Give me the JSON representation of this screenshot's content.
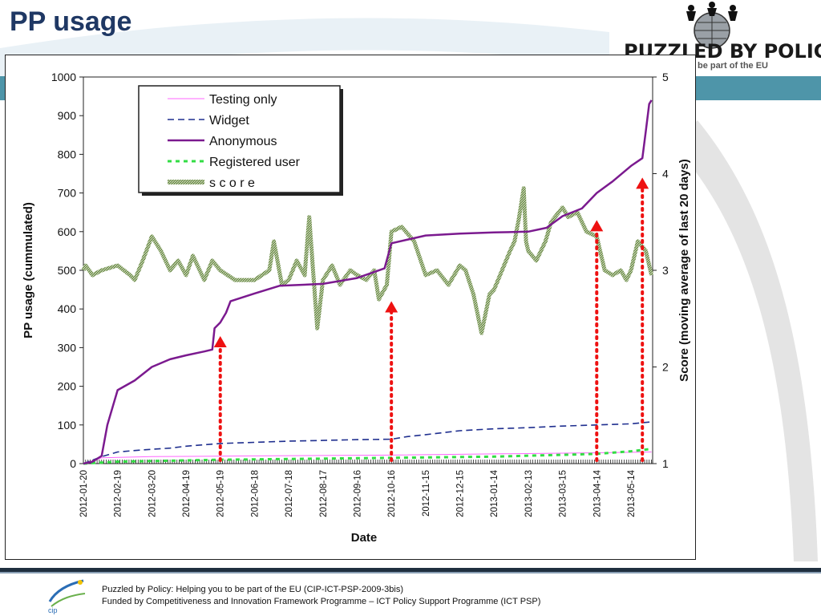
{
  "slide": {
    "title": "PP usage",
    "logo_text": "PUZZLED BY POLICY?",
    "logo_subtext": "be part of the EU",
    "footer_line1": "Puzzled by Policy: Helping you to be part of the EU (CIP-ICT-PSP-2009-3bis)",
    "footer_line2": "Funded by Competitiveness and Innovation Framework Programme – ICT Policy Support Programme (ICT PSP)",
    "colors": {
      "title": "#1f3864",
      "accent": "#4fa3b8"
    },
    "icons": [
      "puzzled-by-policy-logo",
      "cip-logo"
    ]
  },
  "chart_data": {
    "type": "line",
    "xlabel": "Date",
    "ylabel": "PP usage (cummulated)",
    "y2label": "Score (moving average of last 20 days)",
    "x_ticks": [
      "2012-01-20",
      "2012-02-19",
      "2012-03-20",
      "2012-04-19",
      "2012-05-19",
      "2012-06-18",
      "2012-07-18",
      "2012-08-17",
      "2012-09-16",
      "2012-10-16",
      "2012-11-15",
      "2012-12-15",
      "2013-01-14",
      "2013-02-13",
      "2013-03-15",
      "2013-04-14",
      "2013-05-14"
    ],
    "xlim": [
      "2012-01-20",
      "2013-06-02"
    ],
    "ylim": [
      0,
      1000
    ],
    "y_ticks": [
      0,
      100,
      200,
      300,
      400,
      500,
      600,
      700,
      800,
      900,
      1000
    ],
    "y2lim": [
      1,
      5
    ],
    "y2_ticks": [
      1,
      2,
      3,
      4,
      5
    ],
    "legend_position": "top-left",
    "series": [
      {
        "name": "Testing only",
        "axis": "left",
        "color": "#ff66ff",
        "style": "solid-thin",
        "points": [
          [
            "2012-01-20",
            0
          ],
          [
            "2012-02-05",
            15
          ],
          [
            "2012-03-20",
            18
          ],
          [
            "2012-06-18",
            20
          ],
          [
            "2012-10-16",
            22
          ],
          [
            "2013-01-14",
            25
          ],
          [
            "2013-04-14",
            28
          ],
          [
            "2013-06-01",
            30
          ]
        ]
      },
      {
        "name": "Widget",
        "axis": "left",
        "color": "#1f2f8f",
        "style": "dashed",
        "points": [
          [
            "2012-01-20",
            0
          ],
          [
            "2012-02-05",
            18
          ],
          [
            "2012-02-19",
            30
          ],
          [
            "2012-03-10",
            35
          ],
          [
            "2012-04-05",
            40
          ],
          [
            "2012-04-19",
            45
          ],
          [
            "2012-05-19",
            52
          ],
          [
            "2012-06-18",
            55
          ],
          [
            "2012-07-18",
            58
          ],
          [
            "2012-08-17",
            60
          ],
          [
            "2012-09-16",
            62
          ],
          [
            "2012-10-16",
            63
          ],
          [
            "2012-10-30",
            70
          ],
          [
            "2012-11-15",
            75
          ],
          [
            "2012-12-15",
            85
          ],
          [
            "2013-01-14",
            90
          ],
          [
            "2013-02-13",
            93
          ],
          [
            "2013-03-15",
            97
          ],
          [
            "2013-04-14",
            100
          ],
          [
            "2013-05-14",
            103
          ],
          [
            "2013-06-01",
            108
          ]
        ]
      },
      {
        "name": "Anonymous",
        "axis": "left",
        "color": "#7b1a8f",
        "style": "solid-thick",
        "points": [
          [
            "2012-01-20",
            0
          ],
          [
            "2012-01-28",
            5
          ],
          [
            "2012-02-05",
            20
          ],
          [
            "2012-02-10",
            100
          ],
          [
            "2012-02-15",
            150
          ],
          [
            "2012-02-19",
            190
          ],
          [
            "2012-03-05",
            215
          ],
          [
            "2012-03-20",
            250
          ],
          [
            "2012-04-05",
            270
          ],
          [
            "2012-04-19",
            280
          ],
          [
            "2012-05-05",
            290
          ],
          [
            "2012-05-12",
            295
          ],
          [
            "2012-05-14",
            350
          ],
          [
            "2012-05-19",
            365
          ],
          [
            "2012-05-24",
            390
          ],
          [
            "2012-05-28",
            420
          ],
          [
            "2012-06-18",
            440
          ],
          [
            "2012-07-10",
            460
          ],
          [
            "2012-08-17",
            465
          ],
          [
            "2012-09-16",
            480
          ],
          [
            "2012-10-10",
            505
          ],
          [
            "2012-10-16",
            570
          ],
          [
            "2012-11-15",
            590
          ],
          [
            "2012-12-15",
            595
          ],
          [
            "2013-01-14",
            598
          ],
          [
            "2013-02-13",
            600
          ],
          [
            "2013-03-01",
            610
          ],
          [
            "2013-03-15",
            640
          ],
          [
            "2013-04-01",
            660
          ],
          [
            "2013-04-14",
            700
          ],
          [
            "2013-04-28",
            730
          ],
          [
            "2013-05-14",
            770
          ],
          [
            "2013-05-24",
            790
          ],
          [
            "2013-05-27",
            860
          ],
          [
            "2013-05-30",
            930
          ],
          [
            "2013-06-01",
            940
          ]
        ]
      },
      {
        "name": "Registered user",
        "axis": "left",
        "color": "#33dd44",
        "style": "dashed-thick",
        "points": [
          [
            "2012-01-20",
            0
          ],
          [
            "2012-02-19",
            5
          ],
          [
            "2012-05-19",
            10
          ],
          [
            "2012-09-16",
            14
          ],
          [
            "2013-01-14",
            18
          ],
          [
            "2013-04-14",
            25
          ],
          [
            "2013-05-14",
            32
          ],
          [
            "2013-06-01",
            38
          ]
        ]
      },
      {
        "name": "s c o r e",
        "axis": "right",
        "color": "#5a7a3a",
        "style": "hatched",
        "points": [
          [
            "2012-01-20",
            3.0
          ],
          [
            "2012-01-22",
            3.05
          ],
          [
            "2012-01-28",
            2.95
          ],
          [
            "2012-02-05",
            3.0
          ],
          [
            "2012-02-19",
            3.05
          ],
          [
            "2012-03-01",
            2.95
          ],
          [
            "2012-03-05",
            2.9
          ],
          [
            "2012-03-12",
            3.1
          ],
          [
            "2012-03-20",
            3.35
          ],
          [
            "2012-03-28",
            3.2
          ],
          [
            "2012-04-05",
            3.0
          ],
          [
            "2012-04-12",
            3.1
          ],
          [
            "2012-04-19",
            2.95
          ],
          [
            "2012-04-25",
            3.15
          ],
          [
            "2012-05-05",
            2.9
          ],
          [
            "2012-05-12",
            3.1
          ],
          [
            "2012-05-19",
            3.0
          ],
          [
            "2012-06-01",
            2.9
          ],
          [
            "2012-06-18",
            2.9
          ],
          [
            "2012-07-01",
            3.0
          ],
          [
            "2012-07-05",
            3.3
          ],
          [
            "2012-07-12",
            2.85
          ],
          [
            "2012-07-18",
            2.9
          ],
          [
            "2012-07-25",
            3.1
          ],
          [
            "2012-08-01",
            2.95
          ],
          [
            "2012-08-05",
            3.55
          ],
          [
            "2012-08-12",
            2.4
          ],
          [
            "2012-08-17",
            2.9
          ],
          [
            "2012-08-25",
            3.05
          ],
          [
            "2012-09-01",
            2.85
          ],
          [
            "2012-09-10",
            3.0
          ],
          [
            "2012-09-16",
            2.95
          ],
          [
            "2012-09-24",
            2.9
          ],
          [
            "2012-10-01",
            3.0
          ],
          [
            "2012-10-05",
            2.7
          ],
          [
            "2012-10-12",
            2.85
          ],
          [
            "2012-10-16",
            3.4
          ],
          [
            "2012-10-25",
            3.45
          ],
          [
            "2012-11-05",
            3.3
          ],
          [
            "2012-11-15",
            2.95
          ],
          [
            "2012-11-25",
            3.0
          ],
          [
            "2012-12-05",
            2.85
          ],
          [
            "2012-12-15",
            3.05
          ],
          [
            "2012-12-20",
            3.0
          ],
          [
            "2012-12-27",
            2.75
          ],
          [
            "2013-01-03",
            2.35
          ],
          [
            "2013-01-10",
            2.75
          ],
          [
            "2013-01-14",
            2.8
          ],
          [
            "2013-01-21",
            3.0
          ],
          [
            "2013-01-28",
            3.2
          ],
          [
            "2013-02-01",
            3.3
          ],
          [
            "2013-02-05",
            3.55
          ],
          [
            "2013-02-09",
            3.85
          ],
          [
            "2013-02-11",
            3.3
          ],
          [
            "2013-02-13",
            3.2
          ],
          [
            "2013-02-20",
            3.1
          ],
          [
            "2013-02-28",
            3.3
          ],
          [
            "2013-03-05",
            3.5
          ],
          [
            "2013-03-15",
            3.65
          ],
          [
            "2013-03-20",
            3.55
          ],
          [
            "2013-03-28",
            3.6
          ],
          [
            "2013-04-05",
            3.4
          ],
          [
            "2013-04-14",
            3.35
          ],
          [
            "2013-04-21",
            3.0
          ],
          [
            "2013-04-28",
            2.95
          ],
          [
            "2013-05-05",
            3.0
          ],
          [
            "2013-05-10",
            2.9
          ],
          [
            "2013-05-14",
            3.0
          ],
          [
            "2013-05-20",
            3.3
          ],
          [
            "2013-05-27",
            3.2
          ],
          [
            "2013-06-01",
            2.95
          ]
        ]
      }
    ],
    "annotations": [
      {
        "type": "arrow",
        "date": "2012-05-19",
        "top_value": 330,
        "color": "#ee1111",
        "style": "dotted"
      },
      {
        "type": "arrow",
        "date": "2012-10-16",
        "top_value": 420,
        "color": "#ee1111",
        "style": "dotted"
      },
      {
        "type": "arrow",
        "date": "2013-04-14",
        "top_value": 630,
        "color": "#ee1111",
        "style": "dotted"
      },
      {
        "type": "arrow",
        "date": "2013-05-24",
        "top_value": 740,
        "color": "#ee1111",
        "style": "dotted"
      }
    ]
  }
}
